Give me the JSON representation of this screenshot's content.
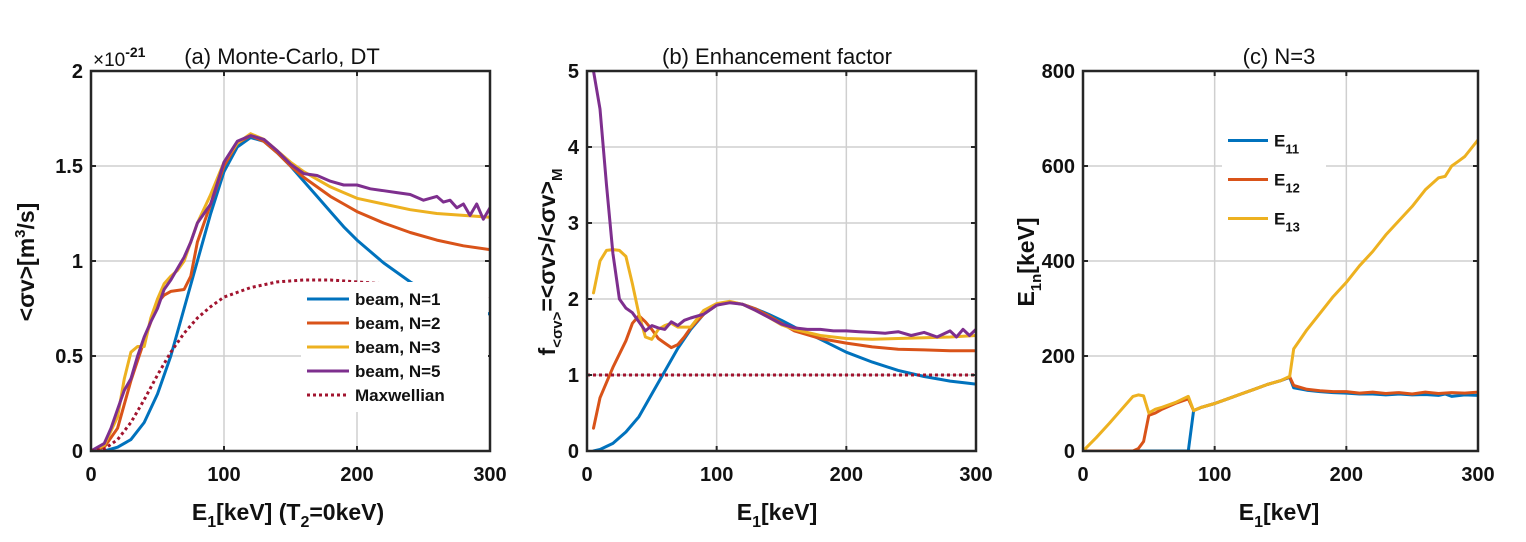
{
  "chart_data": [
    {
      "type": "line",
      "title": "(a) Monte-Carlo, DT",
      "y_multiplier": "×10",
      "y_multiplier_exp": "-21",
      "xlabel": {
        "main": "E",
        "sub": "1",
        "rest": "[keV] (T",
        "sub2": "2",
        "tail": "=0keV)"
      },
      "ylabel": {
        "main": "<σv>[m",
        "sup": "3",
        "tail": "/s]"
      },
      "xlim": [
        0,
        300
      ],
      "ylim": [
        0,
        2
      ],
      "xticks": [
        0,
        100,
        200,
        300
      ],
      "xtick_labels": [
        "0",
        "100",
        "200",
        "300"
      ],
      "yticks": [
        0,
        0.5,
        1,
        1.5,
        2
      ],
      "ytick_labels": [
        "0",
        "0.5",
        "1",
        "1.5",
        "2"
      ],
      "grid": true,
      "legend_position": "lower-right",
      "series": [
        {
          "name": "beam, N=1",
          "color": "#0072BD",
          "style": "solid",
          "x": [
            0,
            10,
            20,
            30,
            40,
            50,
            60,
            70,
            80,
            90,
            100,
            110,
            120,
            130,
            140,
            150,
            160,
            170,
            180,
            190,
            200,
            210,
            220,
            230,
            240,
            250,
            260,
            270,
            280,
            290,
            300
          ],
          "y": [
            0,
            0,
            0.02,
            0.06,
            0.15,
            0.3,
            0.5,
            0.75,
            1.0,
            1.25,
            1.47,
            1.6,
            1.65,
            1.63,
            1.57,
            1.5,
            1.42,
            1.34,
            1.26,
            1.18,
            1.11,
            1.05,
            0.99,
            0.94,
            0.89,
            0.85,
            0.82,
            0.79,
            0.76,
            0.74,
            0.72
          ]
        },
        {
          "name": "beam, N=2",
          "color": "#D95319",
          "style": "solid",
          "x": [
            0,
            10,
            20,
            30,
            40,
            50,
            55,
            60,
            70,
            75,
            80,
            90,
            100,
            110,
            120,
            130,
            140,
            150,
            160,
            170,
            180,
            190,
            200,
            220,
            240,
            260,
            280,
            300
          ],
          "y": [
            0,
            0.02,
            0.12,
            0.37,
            0.58,
            0.78,
            0.82,
            0.84,
            0.85,
            0.92,
            1.1,
            1.3,
            1.5,
            1.62,
            1.66,
            1.63,
            1.57,
            1.5,
            1.44,
            1.39,
            1.34,
            1.3,
            1.26,
            1.2,
            1.15,
            1.11,
            1.08,
            1.06
          ]
        },
        {
          "name": "beam, N=3",
          "color": "#EDB120",
          "style": "solid",
          "x": [
            0,
            10,
            20,
            25,
            30,
            35,
            40,
            45,
            50,
            55,
            60,
            65,
            70,
            80,
            90,
            100,
            110,
            120,
            130,
            140,
            150,
            160,
            170,
            180,
            190,
            200,
            220,
            240,
            260,
            280,
            300
          ],
          "y": [
            0,
            0.03,
            0.18,
            0.38,
            0.52,
            0.55,
            0.55,
            0.7,
            0.8,
            0.88,
            0.92,
            0.95,
            1.0,
            1.2,
            1.35,
            1.52,
            1.62,
            1.67,
            1.64,
            1.58,
            1.52,
            1.47,
            1.43,
            1.39,
            1.36,
            1.33,
            1.3,
            1.27,
            1.25,
            1.24,
            1.23
          ]
        },
        {
          "name": "beam, N=5",
          "color": "#7E2F8E",
          "style": "solid",
          "x": [
            0,
            10,
            15,
            20,
            25,
            30,
            35,
            40,
            45,
            50,
            55,
            60,
            65,
            70,
            75,
            80,
            90,
            100,
            110,
            120,
            130,
            140,
            150,
            160,
            170,
            180,
            190,
            200,
            210,
            220,
            230,
            240,
            250,
            260,
            265,
            270,
            275,
            280,
            285,
            290,
            295,
            300
          ],
          "y": [
            0,
            0.04,
            0.12,
            0.22,
            0.32,
            0.38,
            0.5,
            0.6,
            0.68,
            0.75,
            0.85,
            0.9,
            0.96,
            1.02,
            1.1,
            1.2,
            1.3,
            1.52,
            1.63,
            1.66,
            1.64,
            1.58,
            1.51,
            1.46,
            1.45,
            1.42,
            1.4,
            1.4,
            1.38,
            1.37,
            1.36,
            1.35,
            1.32,
            1.34,
            1.31,
            1.32,
            1.28,
            1.3,
            1.24,
            1.3,
            1.22,
            1.28
          ]
        },
        {
          "name": "Maxwellian",
          "color": "#A2142F",
          "style": "dotted",
          "x": [
            0,
            10,
            20,
            30,
            40,
            50,
            60,
            70,
            80,
            90,
            100,
            120,
            140,
            160,
            180,
            200,
            220,
            240,
            260,
            280,
            300
          ],
          "y": [
            0,
            0.01,
            0.06,
            0.15,
            0.27,
            0.4,
            0.52,
            0.62,
            0.7,
            0.76,
            0.81,
            0.86,
            0.89,
            0.9,
            0.9,
            0.89,
            0.88,
            0.86,
            0.84,
            0.82,
            0.8
          ]
        }
      ]
    },
    {
      "type": "line",
      "title": "(b) Enhancement factor",
      "xlabel": {
        "main": "E",
        "sub": "1",
        "rest": "[keV]"
      },
      "ylabel": {
        "main": "f",
        "sub": "<σv>",
        "rest": "=<σv>/<σv>",
        "sub2": "M"
      },
      "xlim": [
        0,
        300
      ],
      "ylim": [
        0,
        5
      ],
      "xticks": [
        0,
        100,
        200,
        300
      ],
      "xtick_labels": [
        "0",
        "100",
        "200",
        "300"
      ],
      "yticks": [
        0,
        1,
        2,
        3,
        4,
        5
      ],
      "ytick_labels": [
        "0",
        "1",
        "2",
        "3",
        "4",
        "5"
      ],
      "grid": true,
      "series": [
        {
          "name": "beam, N=1",
          "color": "#0072BD",
          "style": "solid",
          "x": [
            5,
            10,
            20,
            30,
            40,
            50,
            60,
            70,
            80,
            90,
            100,
            110,
            120,
            130,
            140,
            150,
            160,
            180,
            200,
            220,
            240,
            260,
            280,
            300
          ],
          "y": [
            0,
            0.02,
            0.1,
            0.25,
            0.45,
            0.75,
            1.05,
            1.35,
            1.6,
            1.8,
            1.92,
            1.96,
            1.93,
            1.87,
            1.8,
            1.72,
            1.63,
            1.47,
            1.3,
            1.17,
            1.06,
            0.98,
            0.92,
            0.88
          ]
        },
        {
          "name": "beam, N=2",
          "color": "#D95319",
          "style": "solid",
          "x": [
            5,
            10,
            20,
            30,
            35,
            40,
            45,
            50,
            55,
            60,
            65,
            70,
            75,
            80,
            90,
            100,
            110,
            120,
            130,
            140,
            150,
            160,
            180,
            200,
            220,
            240,
            260,
            280,
            300
          ],
          "y": [
            0.3,
            0.7,
            1.1,
            1.45,
            1.68,
            1.78,
            1.7,
            1.6,
            1.48,
            1.42,
            1.36,
            1.4,
            1.5,
            1.62,
            1.8,
            1.92,
            1.96,
            1.93,
            1.87,
            1.78,
            1.68,
            1.58,
            1.48,
            1.42,
            1.37,
            1.34,
            1.33,
            1.32,
            1.32
          ]
        },
        {
          "name": "beam, N=3",
          "color": "#EDB120",
          "style": "solid",
          "x": [
            5,
            10,
            15,
            20,
            25,
            30,
            35,
            40,
            45,
            50,
            55,
            60,
            65,
            70,
            80,
            90,
            100,
            110,
            120,
            130,
            140,
            150,
            160,
            180,
            200,
            220,
            240,
            260,
            280,
            300
          ],
          "y": [
            2.08,
            2.5,
            2.64,
            2.65,
            2.64,
            2.56,
            2.2,
            1.8,
            1.5,
            1.47,
            1.6,
            1.65,
            1.68,
            1.63,
            1.63,
            1.85,
            1.94,
            1.97,
            1.93,
            1.85,
            1.76,
            1.66,
            1.6,
            1.52,
            1.48,
            1.47,
            1.48,
            1.49,
            1.5,
            1.52
          ]
        },
        {
          "name": "beam, N=5",
          "color": "#7E2F8E",
          "style": "solid",
          "x": [
            5,
            10,
            15,
            20,
            25,
            30,
            35,
            40,
            45,
            50,
            55,
            60,
            65,
            70,
            75,
            80,
            90,
            100,
            110,
            120,
            130,
            140,
            150,
            160,
            170,
            180,
            190,
            200,
            210,
            220,
            230,
            240,
            250,
            260,
            270,
            280,
            285,
            290,
            295,
            300
          ],
          "y": [
            5.0,
            4.5,
            3.5,
            2.6,
            2.0,
            1.88,
            1.82,
            1.7,
            1.58,
            1.65,
            1.62,
            1.6,
            1.7,
            1.65,
            1.72,
            1.75,
            1.8,
            1.92,
            1.95,
            1.93,
            1.85,
            1.76,
            1.67,
            1.62,
            1.6,
            1.6,
            1.58,
            1.58,
            1.57,
            1.56,
            1.55,
            1.57,
            1.52,
            1.56,
            1.5,
            1.58,
            1.5,
            1.6,
            1.52,
            1.6
          ]
        },
        {
          "name": "Maxwellian",
          "color": "#A2142F",
          "style": "dotted",
          "x": [
            0,
            300
          ],
          "y": [
            1,
            1
          ]
        }
      ]
    },
    {
      "type": "line",
      "title": "(c) N=3",
      "xlabel": {
        "main": "E",
        "sub": "1",
        "rest": "[keV]"
      },
      "ylabel": {
        "main": "E",
        "sub": "1n",
        "rest": "[keV]"
      },
      "xlim": [
        0,
        300
      ],
      "ylim": [
        0,
        800
      ],
      "xticks": [
        0,
        100,
        200,
        300
      ],
      "xtick_labels": [
        "0",
        "100",
        "200",
        "300"
      ],
      "yticks": [
        0,
        200,
        400,
        600,
        800
      ],
      "ytick_labels": [
        "0",
        "200",
        "400",
        "600",
        "800"
      ],
      "grid": true,
      "legend_position": "upper-left",
      "series": [
        {
          "name": "E",
          "name_sub": "11",
          "color": "#0072BD",
          "style": "solid",
          "x": [
            0,
            10,
            20,
            30,
            40,
            50,
            60,
            70,
            80,
            84,
            90,
            100,
            110,
            120,
            130,
            140,
            150,
            157,
            160,
            170,
            180,
            190,
            200,
            210,
            220,
            230,
            240,
            250,
            260,
            270,
            275,
            280,
            290,
            300
          ],
          "y": [
            0,
            0,
            0,
            0,
            0,
            0,
            0,
            0,
            0,
            85,
            92,
            100,
            110,
            120,
            130,
            140,
            148,
            155,
            133,
            128,
            125,
            123,
            122,
            120,
            120,
            118,
            120,
            118,
            119,
            117,
            120,
            115,
            118,
            117
          ]
        },
        {
          "name": "E",
          "name_sub": "12",
          "color": "#D95319",
          "style": "solid",
          "x": [
            0,
            10,
            20,
            30,
            38,
            42,
            46,
            50,
            55,
            60,
            70,
            80,
            84,
            90,
            100,
            110,
            120,
            130,
            140,
            150,
            157,
            160,
            170,
            180,
            190,
            200,
            210,
            220,
            230,
            240,
            250,
            260,
            270,
            280,
            290,
            300
          ],
          "y": [
            0,
            0,
            0,
            0,
            0,
            5,
            20,
            75,
            80,
            88,
            100,
            110,
            85,
            92,
            100,
            110,
            120,
            130,
            140,
            148,
            156,
            138,
            130,
            127,
            125,
            125,
            122,
            124,
            121,
            123,
            120,
            124,
            121,
            123,
            122,
            124
          ]
        },
        {
          "name": "E",
          "name_sub": "13",
          "color": "#EDB120",
          "style": "solid",
          "x": [
            0,
            10,
            20,
            30,
            38,
            42,
            46,
            50,
            55,
            60,
            70,
            80,
            84,
            90,
            100,
            110,
            120,
            130,
            140,
            150,
            157,
            160,
            165,
            170,
            180,
            190,
            200,
            210,
            220,
            230,
            240,
            250,
            260,
            270,
            275,
            280,
            285,
            290,
            300
          ],
          "y": [
            0,
            28,
            58,
            90,
            115,
            118,
            116,
            80,
            88,
            92,
            102,
            115,
            85,
            92,
            100,
            110,
            120,
            130,
            140,
            148,
            157,
            215,
            235,
            255,
            290,
            325,
            355,
            390,
            420,
            455,
            485,
            515,
            550,
            575,
            578,
            600,
            610,
            620,
            655
          ]
        }
      ]
    }
  ]
}
